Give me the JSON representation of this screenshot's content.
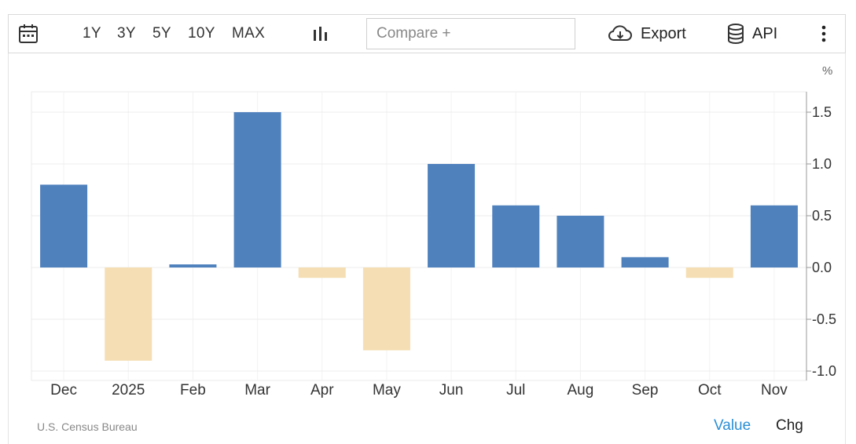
{
  "toolbar": {
    "calendar_icon": "calendar-icon",
    "ranges": [
      "1Y",
      "3Y",
      "5Y",
      "10Y",
      "MAX"
    ],
    "chart_type_icon": "bar-chart-icon",
    "compare_placeholder": "Compare +",
    "export_label": "Export",
    "export_icon": "cloud-download-icon",
    "api_label": "API",
    "api_icon": "database-icon",
    "more_icon": "more-vertical-icon"
  },
  "footer": {
    "source": "U.S. Census Bureau",
    "value_label": "Value",
    "chg_label": "Chg"
  },
  "colors": {
    "positive": "#4f81bd",
    "negative": "#f5deb3",
    "link": "#2a8fd6"
  },
  "chart_data": {
    "type": "bar",
    "unit": "%",
    "categories": [
      "Dec",
      "2025",
      "Feb",
      "Mar",
      "Apr",
      "May",
      "Jun",
      "Jul",
      "Aug",
      "Sep",
      "Oct",
      "Nov"
    ],
    "values": [
      0.8,
      -0.9,
      0.03,
      1.5,
      -0.1,
      -0.8,
      1.0,
      0.6,
      0.5,
      0.1,
      -0.1,
      0.6
    ],
    "yticks": [
      "1.5",
      "1.0",
      "0.5",
      "0.0",
      "-0.5",
      "-1.0"
    ],
    "ylim": [
      -1.0,
      1.5
    ],
    "grid": true,
    "y_axis_position": "right"
  }
}
